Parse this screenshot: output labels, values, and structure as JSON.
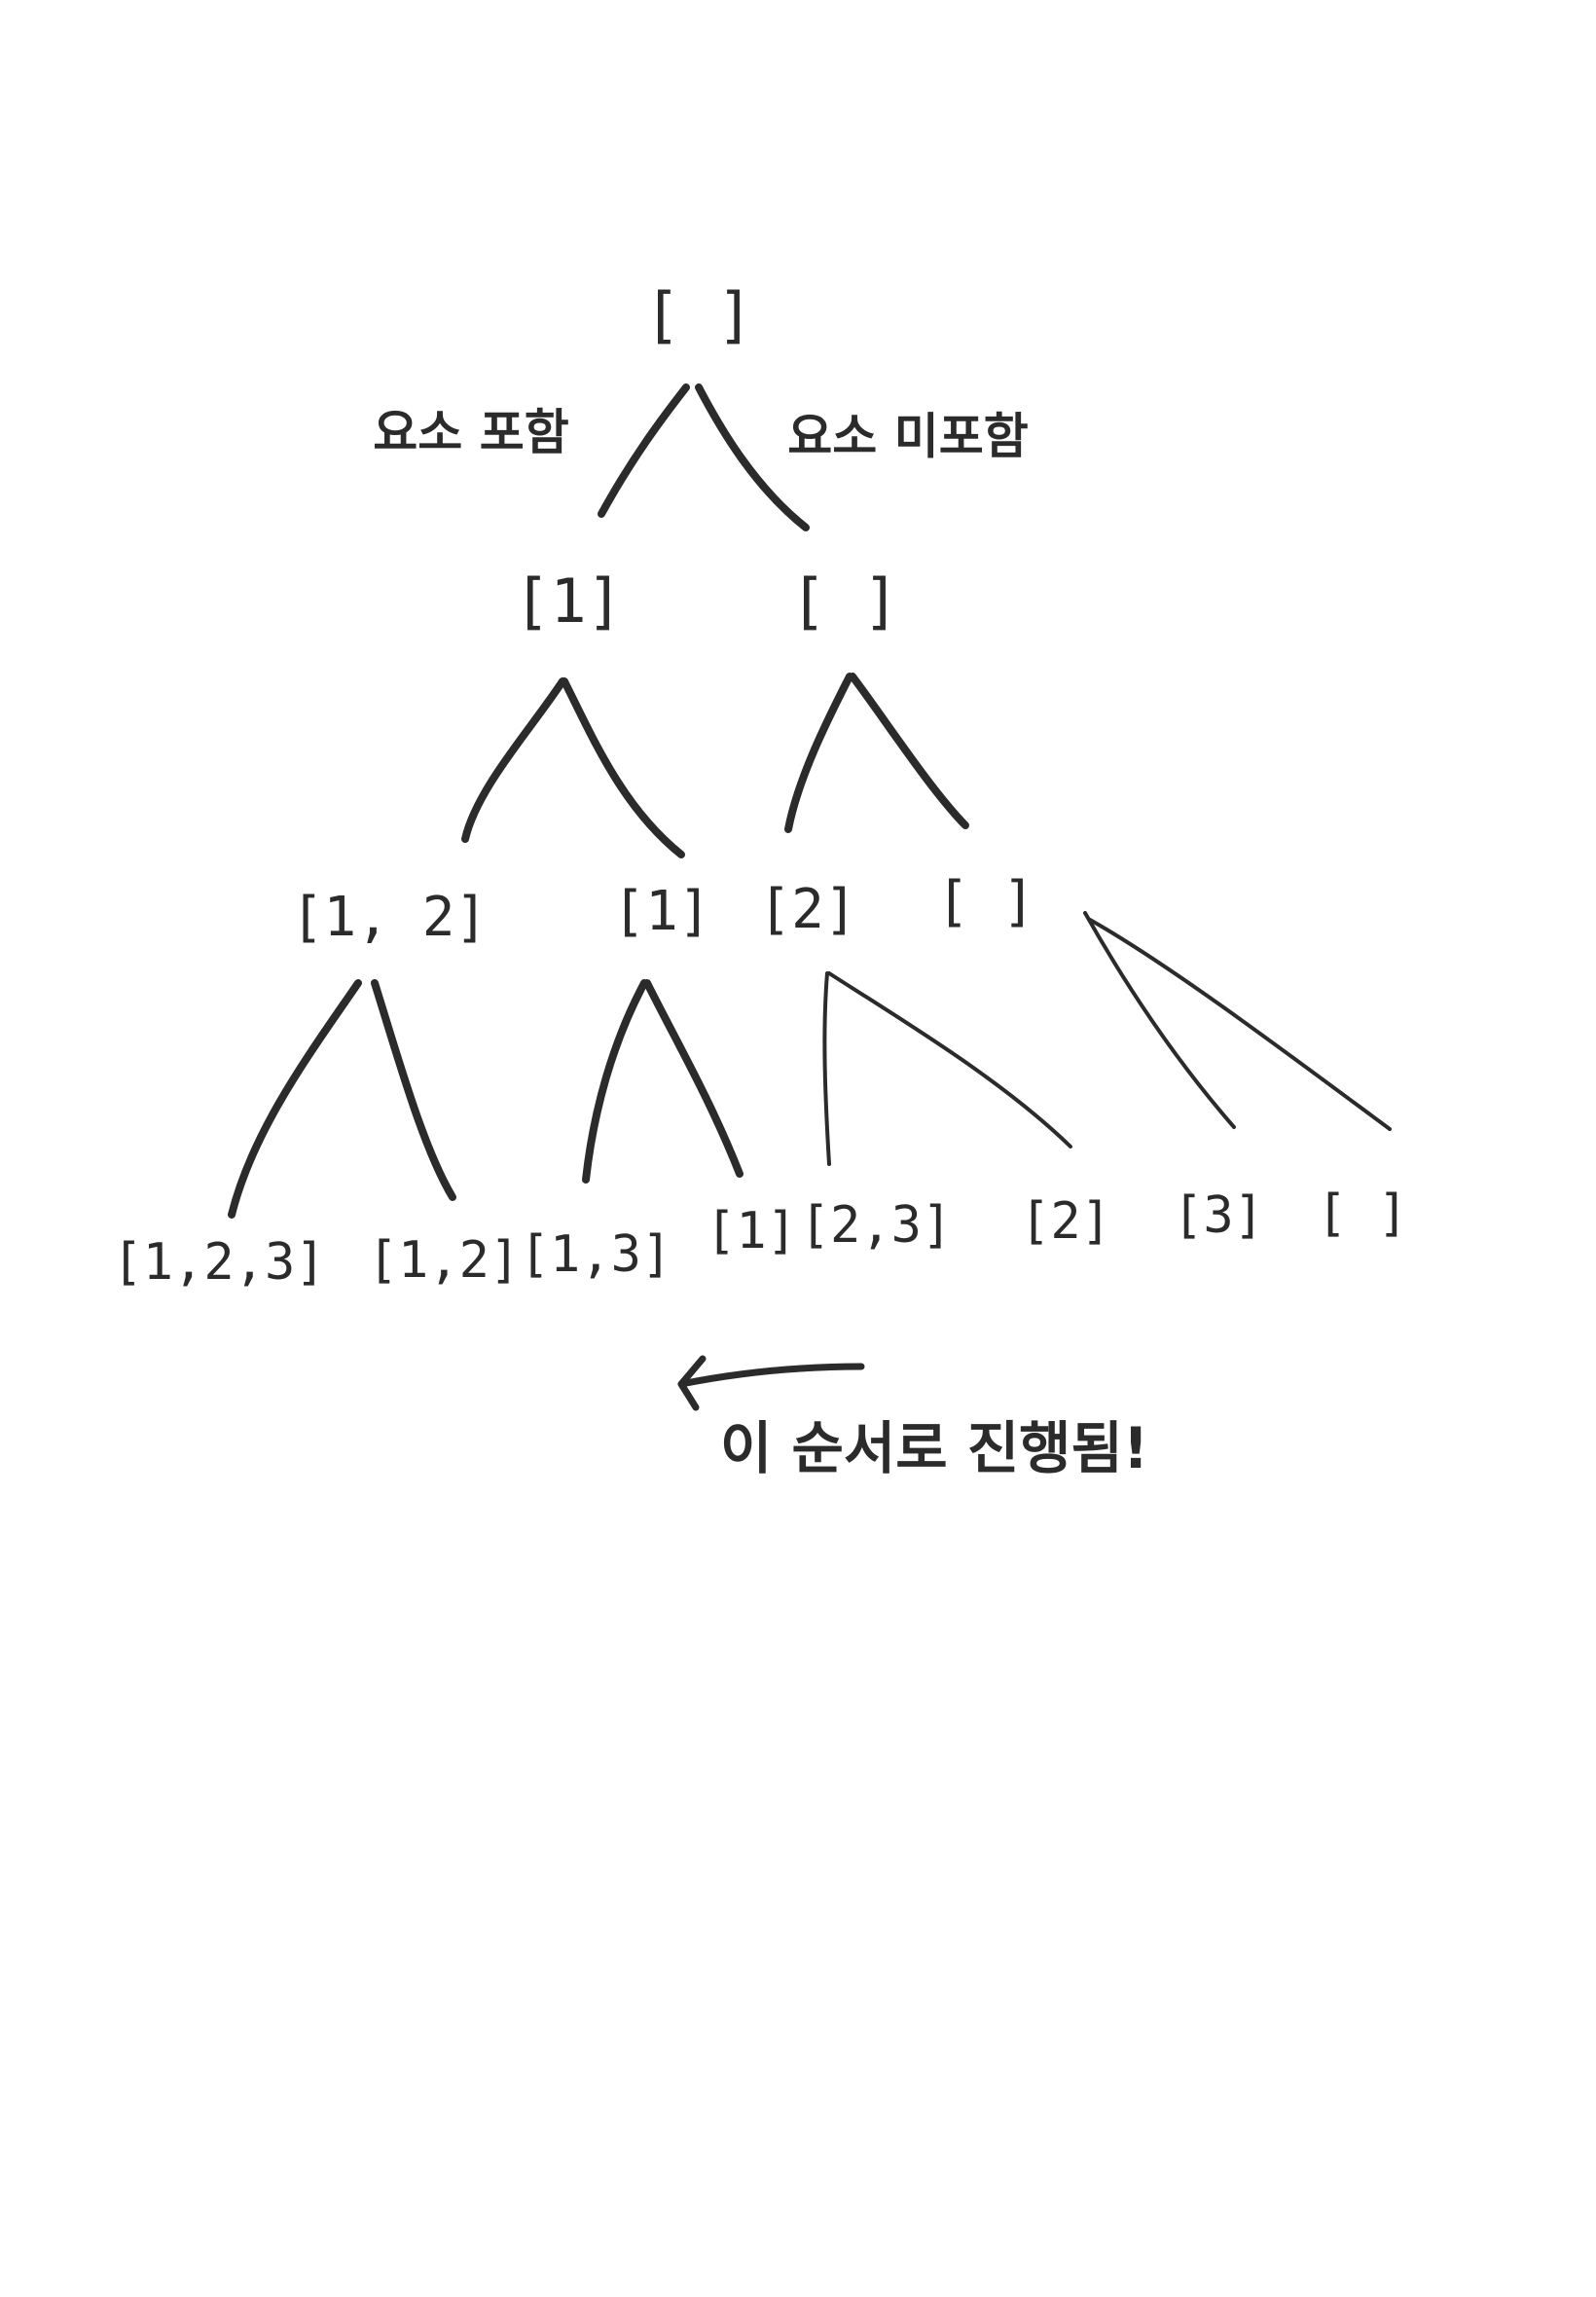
{
  "tree": {
    "root": "[ ]",
    "level1": [
      "[1]",
      "[ ]"
    ],
    "level2": [
      "[1, 2]",
      "[1]",
      "[2]",
      "[ ]"
    ],
    "level3": [
      "[1,2,3]",
      "[1,2]",
      "[1,3]",
      "[1]",
      "[2,3]",
      "[2]",
      "[3]",
      "[ ]"
    ]
  },
  "labels": {
    "include": "요소 포함",
    "exclude": "요소 미포함"
  },
  "annotation": {
    "text": "이 순서로 진행됨!"
  },
  "colors": {
    "ink": "#2b2b2b",
    "background": "#ffffff"
  }
}
